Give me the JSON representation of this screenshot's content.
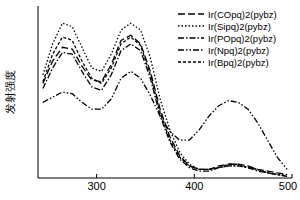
{
  "chart_data": {
    "type": "line",
    "y_label": "发射强度",
    "x": [
      245,
      255,
      265,
      275,
      285,
      295,
      305,
      315,
      325,
      335,
      345,
      355,
      365,
      375,
      385,
      395,
      405,
      415,
      425,
      435,
      445,
      455,
      465,
      475,
      485,
      495
    ],
    "xlim": [
      240,
      500
    ],
    "xticks": [
      300,
      400,
      500
    ],
    "ylim": [
      0,
      1
    ],
    "tick_labels": "x",
    "legend": "top-right",
    "series": [
      {
        "name": "Ir(COpq)2(pybz)",
        "color": "#000000",
        "line_style": "dashed",
        "values": [
          0.55,
          0.68,
          0.76,
          0.75,
          0.65,
          0.57,
          0.56,
          0.66,
          0.8,
          0.83,
          0.78,
          0.62,
          0.4,
          0.24,
          0.13,
          0.07,
          0.05,
          0.05,
          0.07,
          0.08,
          0.08,
          0.07,
          0.05,
          0.04,
          0.03,
          0.02
        ]
      },
      {
        "name": "Ir(Sipq)2(pybz)",
        "color": "#000000",
        "line_style": "dotted",
        "values": [
          0.6,
          0.78,
          0.9,
          0.88,
          0.76,
          0.64,
          0.62,
          0.72,
          0.86,
          0.9,
          0.86,
          0.7,
          0.46,
          0.28,
          0.15,
          0.08,
          0.05,
          0.05,
          0.06,
          0.07,
          0.07,
          0.06,
          0.05,
          0.03,
          0.02,
          0.02
        ]
      },
      {
        "name": "Ir(POpq)2(pybz)",
        "color": "#000000",
        "line_style": "dashdot",
        "values": [
          0.52,
          0.64,
          0.73,
          0.72,
          0.62,
          0.53,
          0.51,
          0.6,
          0.74,
          0.78,
          0.74,
          0.58,
          0.36,
          0.21,
          0.11,
          0.06,
          0.04,
          0.04,
          0.06,
          0.07,
          0.07,
          0.06,
          0.04,
          0.03,
          0.02,
          0.01
        ]
      },
      {
        "name": "Ir(Npq)2(pybz)",
        "color": "#000000",
        "line_style": "dashdotdot",
        "values": [
          0.44,
          0.47,
          0.5,
          0.49,
          0.44,
          0.4,
          0.4,
          0.46,
          0.58,
          0.62,
          0.58,
          0.48,
          0.36,
          0.27,
          0.22,
          0.22,
          0.28,
          0.36,
          0.42,
          0.45,
          0.44,
          0.4,
          0.32,
          0.22,
          0.12,
          0.05
        ]
      },
      {
        "name": "Ir(Bpq)2(pybz)",
        "color": "#000000",
        "line_style": "shortdash",
        "values": [
          0.56,
          0.72,
          0.82,
          0.8,
          0.68,
          0.58,
          0.55,
          0.64,
          0.78,
          0.82,
          0.77,
          0.6,
          0.38,
          0.22,
          0.12,
          0.07,
          0.05,
          0.05,
          0.06,
          0.08,
          0.08,
          0.06,
          0.05,
          0.03,
          0.02,
          0.01
        ]
      }
    ]
  }
}
